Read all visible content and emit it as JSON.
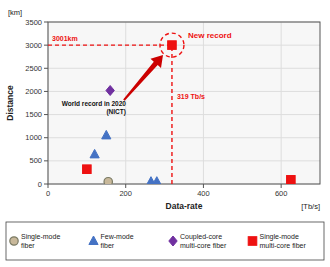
{
  "chart_data": {
    "type": "scatter",
    "xlabel": "Data-rate",
    "xlabel_unit": "[Tb/s]",
    "ylabel": "Distance",
    "ylabel_unit": "[km]",
    "xlim": [
      0,
      700
    ],
    "ylim": [
      0,
      3500
    ],
    "xticks": [
      0,
      200,
      400,
      600
    ],
    "yticks": [
      0,
      500,
      1000,
      1500,
      2000,
      2500,
      3000,
      3500
    ],
    "grid": true,
    "legend": "bottom",
    "series": [
      {
        "name": "Single-mode\nfiber",
        "color": "#c8b89a",
        "marker": "circle",
        "x": [
          155
        ],
        "values": [
          50
        ]
      },
      {
        "name": "Few-mode\nfiber",
        "color": "#4472c4",
        "marker": "triangle",
        "x": [
          120,
          150,
          265,
          280
        ],
        "values": [
          640,
          1050,
          50,
          50
        ]
      },
      {
        "name": "Coupled-core\nmulti-core fiber",
        "color": "#7030a0",
        "marker": "diamond",
        "x": [
          160
        ],
        "values": [
          2020
        ]
      },
      {
        "name": "Single-mode\nmulti-core fiber",
        "color": "#ee1111",
        "marker": "square",
        "x": [
          100,
          319,
          625
        ],
        "values": [
          320,
          3001,
          90
        ]
      }
    ],
    "annotations": [
      {
        "text": "3001km",
        "y": 3001
      },
      {
        "text": "319 Tb/s",
        "x": 319
      },
      {
        "text": "New record",
        "x": 319,
        "y": 3001
      },
      {
        "text": "World record in 2020\n(NICT)"
      }
    ]
  }
}
